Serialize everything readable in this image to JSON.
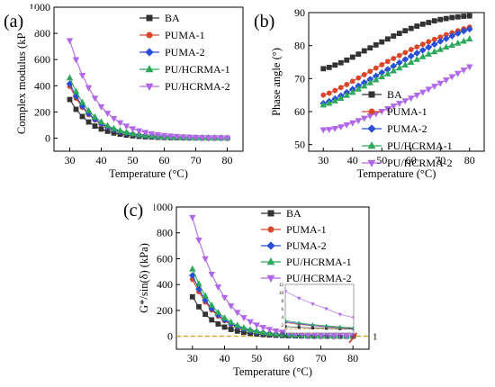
{
  "colors": {
    "BA": "#333333",
    "PUMA-1": "#d9472b",
    "PUMA-2": "#2a4fd6",
    "PU/HCRMA-1": "#2ea85a",
    "PU/HCRMA-2": "#b168e8",
    "dashed": "#d4a017",
    "arrow": "#c0392b"
  },
  "chart_data": [
    {
      "id": "a",
      "type": "line",
      "panel_label": "(a)",
      "title": "",
      "xlabel": "Temperature (°C)",
      "ylabel": "Complex modulus (kPa)",
      "xlim": [
        25,
        85
      ],
      "ylim": [
        -100,
        1000
      ],
      "xticks": [
        30,
        40,
        50,
        60,
        70,
        80
      ],
      "yticks": [
        0,
        200,
        400,
        600,
        800,
        1000
      ],
      "legend_position": "top-right",
      "x": [
        30,
        32,
        34,
        36,
        38,
        40,
        42,
        44,
        46,
        48,
        50,
        52,
        54,
        56,
        58,
        60,
        62,
        64,
        66,
        68,
        70,
        72,
        74,
        76,
        78,
        80
      ],
      "series": [
        {
          "name": "BA",
          "marker": "square",
          "values": [
            295,
            220,
            165,
            123,
            92,
            69,
            52,
            39,
            30,
            23,
            17,
            13,
            10,
            8,
            6,
            5,
            4,
            3,
            2.5,
            2,
            1.6,
            1.3,
            1.1,
            0.9,
            0.8,
            0.7
          ]
        },
        {
          "name": "PUMA-1",
          "marker": "circle",
          "values": [
            395,
            305,
            235,
            180,
            138,
            106,
            82,
            63,
            49,
            38,
            29,
            23,
            18,
            14,
            11,
            8,
            6.5,
            5,
            4,
            3.2,
            2.6,
            2.1,
            1.7,
            1.4,
            1.2,
            1
          ]
        },
        {
          "name": "PUMA-2",
          "marker": "diamond",
          "values": [
            415,
            320,
            245,
            188,
            144,
            110,
            85,
            65,
            50,
            39,
            30,
            23,
            18,
            14,
            11,
            8.5,
            6.6,
            5.1,
            4,
            3.2,
            2.6,
            2.1,
            1.7,
            1.4,
            1.2,
            1
          ]
        },
        {
          "name": "PU/HCRMA-1",
          "marker": "triangle",
          "values": [
            460,
            355,
            273,
            210,
            161,
            124,
            95,
            73,
            57,
            44,
            34,
            26,
            20,
            16,
            12,
            9.5,
            7.4,
            5.8,
            4.5,
            3.6,
            2.9,
            2.3,
            1.9,
            1.6,
            1.3,
            1.1
          ]
        },
        {
          "name": "PU/HCRMA-2",
          "marker": "triangle-down",
          "values": [
            745,
            600,
            480,
            385,
            305,
            240,
            190,
            150,
            118,
            92,
            72,
            56,
            44,
            34,
            27,
            21,
            16.5,
            13,
            10,
            8,
            6.3,
            5,
            4,
            3.2,
            2.6,
            2.1
          ]
        }
      ]
    },
    {
      "id": "b",
      "type": "line",
      "panel_label": "(b)",
      "title": "",
      "xlabel": "Temperature (°C)",
      "ylabel": "Phase angle (°)",
      "xlim": [
        25,
        85
      ],
      "ylim": [
        48,
        90
      ],
      "xticks": [
        30,
        40,
        50,
        60,
        70,
        80
      ],
      "yticks": [
        50,
        60,
        70,
        80,
        90
      ],
      "legend_position": "bottom-right",
      "x": [
        30,
        32,
        34,
        36,
        38,
        40,
        42,
        44,
        46,
        48,
        50,
        52,
        54,
        56,
        58,
        60,
        62,
        64,
        66,
        68,
        70,
        72,
        74,
        76,
        78,
        80
      ],
      "series": [
        {
          "name": "BA",
          "marker": "square",
          "values": [
            73,
            73.4,
            74.1,
            74.8,
            75.6,
            76.5,
            77.4,
            78.4,
            79.3,
            80.2,
            81.1,
            82,
            82.9,
            83.7,
            84.5,
            85.2,
            85.9,
            86.5,
            87,
            87.5,
            87.9,
            88.2,
            88.5,
            88.7,
            88.9,
            89
          ]
        },
        {
          "name": "PUMA-1",
          "marker": "circle",
          "values": [
            65,
            65.6,
            66.4,
            67.3,
            68.2,
            69.2,
            70.2,
            71.2,
            72.2,
            73.2,
            74.2,
            75.2,
            76.1,
            77,
            77.9,
            78.8,
            79.6,
            80.4,
            81.2,
            81.9,
            82.6,
            83.3,
            83.9,
            84.5,
            85.1,
            85.6
          ]
        },
        {
          "name": "PUMA-2",
          "marker": "diamond",
          "values": [
            62.5,
            63.1,
            63.9,
            64.8,
            65.8,
            66.8,
            67.8,
            68.8,
            69.8,
            70.8,
            71.8,
            72.8,
            73.8,
            74.8,
            75.8,
            76.8,
            77.7,
            78.6,
            79.5,
            80.4,
            81.3,
            82.1,
            82.9,
            83.7,
            84.4,
            85
          ]
        },
        {
          "name": "PU/HCRMA-1",
          "marker": "triangle",
          "values": [
            62,
            62.5,
            63.2,
            64,
            64.9,
            65.8,
            66.8,
            67.7,
            68.7,
            69.6,
            70.5,
            71.4,
            72.3,
            73.2,
            74.1,
            74.9,
            75.8,
            76.6,
            77.4,
            78.1,
            78.8,
            79.5,
            80.1,
            80.7,
            81.3,
            82
          ]
        },
        {
          "name": "PU/HCRMA-2",
          "marker": "triangle-down",
          "values": [
            54.5,
            54.6,
            54.9,
            55.4,
            56,
            56.6,
            57.3,
            58,
            58.7,
            59.4,
            60.1,
            60.9,
            61.7,
            62.5,
            63.3,
            64.1,
            65,
            65.9,
            66.8,
            67.7,
            68.6,
            69.6,
            70.6,
            71.6,
            72.6,
            73.6
          ]
        }
      ]
    },
    {
      "id": "c",
      "type": "line",
      "panel_label": "(c)",
      "title": "",
      "xlabel": "Temperature (°C)",
      "ylabel": "G*/sin(δ) (kPa)",
      "xlim": [
        25,
        85
      ],
      "ylim": [
        -100,
        1000
      ],
      "xticks": [
        30,
        40,
        50,
        60,
        70,
        80
      ],
      "yticks": [
        0,
        200,
        400,
        600,
        800,
        1000
      ],
      "legend_position": "top-right",
      "reference_line": {
        "y": 1,
        "style": "dashed",
        "label": "1"
      },
      "x": [
        30,
        32,
        34,
        36,
        38,
        40,
        42,
        44,
        46,
        48,
        50,
        52,
        54,
        56,
        58,
        60,
        62,
        64,
        66,
        68,
        70,
        72,
        74,
        76,
        78,
        80
      ],
      "series": [
        {
          "name": "BA",
          "marker": "square",
          "values": [
            305,
            228,
            170,
            127,
            95,
            71,
            53,
            40,
            30,
            23,
            17,
            13,
            10,
            7.8,
            6,
            4.6,
            3.6,
            2.8,
            2.3,
            1.9,
            1.6,
            1.4,
            1.25,
            1.15,
            1.05,
            1
          ]
        },
        {
          "name": "PUMA-1",
          "marker": "circle",
          "values": [
            440,
            345,
            265,
            203,
            156,
            120,
            92,
            71,
            55,
            42,
            33,
            25,
            19.5,
            15,
            11.6,
            9,
            7,
            5.4,
            4.2,
            3.3,
            2.6,
            2.1,
            1.8,
            1.5,
            1.3,
            1.15
          ]
        },
        {
          "name": "PUMA-2",
          "marker": "diamond",
          "values": [
            470,
            365,
            280,
            215,
            165,
            127,
            97,
            75,
            58,
            45,
            34,
            26.5,
            20.5,
            15.8,
            12.2,
            9.4,
            7.3,
            5.7,
            4.4,
            3.5,
            2.8,
            2.3,
            1.9,
            1.6,
            1.4,
            1.2
          ]
        },
        {
          "name": "PU/HCRMA-1",
          "marker": "triangle",
          "values": [
            520,
            405,
            312,
            240,
            184,
            141,
            109,
            84,
            65,
            50,
            38.5,
            29.7,
            23,
            17.7,
            13.7,
            10.6,
            8.2,
            6.4,
            5,
            3.9,
            3.1,
            2.5,
            2.1,
            1.8,
            1.5,
            1.3
          ]
        },
        {
          "name": "PU/HCRMA-2",
          "marker": "triangle-down",
          "values": [
            920,
            745,
            600,
            480,
            382,
            300,
            236,
            185,
            145,
            113,
            88,
            69,
            54,
            42,
            33,
            26,
            20.5,
            16.3,
            13,
            10.5,
            10.3,
            8.6,
            7.2,
            6,
            4.6,
            3.8
          ]
        }
      ],
      "inset": {
        "xlim": [
          70,
          80
        ],
        "ylim": [
          0,
          12
        ],
        "xticks": [
          70,
          72,
          74,
          76,
          78,
          80
        ],
        "yticks": [
          0,
          2,
          4,
          6,
          8,
          10,
          12
        ]
      }
    }
  ]
}
